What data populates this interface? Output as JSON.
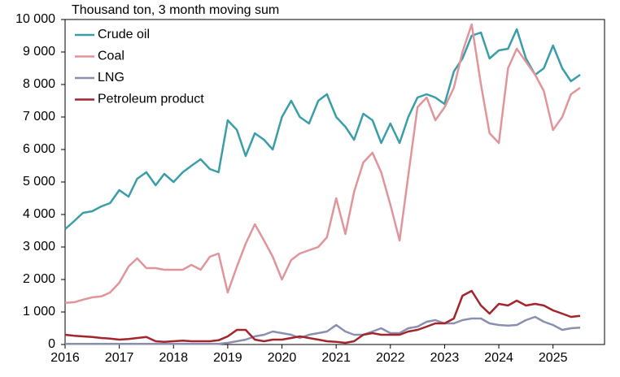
{
  "chart_data": {
    "type": "line",
    "title": "Thousand ton, 3 month moving sum",
    "x": [
      2016,
      2016.17,
      2016.33,
      2016.5,
      2016.67,
      2016.83,
      2017,
      2017.17,
      2017.33,
      2017.5,
      2017.67,
      2017.83,
      2018,
      2018.17,
      2018.33,
      2018.5,
      2018.67,
      2018.83,
      2019,
      2019.17,
      2019.33,
      2019.5,
      2019.67,
      2019.83,
      2020,
      2020.17,
      2020.33,
      2020.5,
      2020.67,
      2020.83,
      2021,
      2021.17,
      2021.33,
      2021.5,
      2021.67,
      2021.83,
      2022,
      2022.17,
      2022.33,
      2022.5,
      2022.67,
      2022.83,
      2023,
      2023.17,
      2023.33,
      2023.5,
      2023.67,
      2023.83,
      2024,
      2024.17,
      2024.33,
      2024.5,
      2024.67,
      2024.83,
      2025,
      2025.17,
      2025.33,
      2025.5
    ],
    "xlim": [
      2016,
      2025.95
    ],
    "xticks": [
      2016,
      2017,
      2018,
      2019,
      2020,
      2021,
      2022,
      2023,
      2024,
      2025
    ],
    "ylim": [
      0,
      10000
    ],
    "yticks": [
      0,
      {
        "value": 1000,
        "label": "1 000"
      },
      {
        "value": 2000,
        "label": "2 000"
      },
      {
        "value": 3000,
        "label": "3 000"
      },
      {
        "value": 4000,
        "label": "4 000"
      },
      {
        "value": 5000,
        "label": "5 000"
      },
      {
        "value": 6000,
        "label": "6 000"
      },
      {
        "value": 7000,
        "label": "7 000"
      },
      {
        "value": 8000,
        "label": "8 000"
      },
      {
        "value": 9000,
        "label": "9 000"
      },
      {
        "value": 10000,
        "label": "10 000"
      }
    ],
    "legend": "upper left",
    "series": [
      {
        "name": "Crude oil",
        "color": "#3a9ea8",
        "values": [
          3550,
          3800,
          4050,
          4100,
          4250,
          4350,
          4750,
          4550,
          5100,
          5300,
          4900,
          5250,
          5000,
          5300,
          5500,
          5700,
          5400,
          5300,
          6900,
          6600,
          5800,
          6500,
          6300,
          6000,
          7000,
          7500,
          7000,
          6800,
          7500,
          7700,
          7000,
          6700,
          6300,
          7100,
          6900,
          6200,
          6800,
          6200,
          7000,
          7600,
          7700,
          7600,
          7400,
          8400,
          8800,
          9500,
          9600,
          8800,
          9050,
          9100,
          9700,
          8800,
          8300,
          8500,
          9200,
          8500,
          8100,
          8300
        ]
      },
      {
        "name": "Coal",
        "color": "#e0959a",
        "values": [
          1280,
          1300,
          1380,
          1450,
          1480,
          1600,
          1900,
          2400,
          2650,
          2350,
          2350,
          2300,
          2300,
          2300,
          2450,
          2300,
          2700,
          2800,
          1600,
          2400,
          3100,
          3700,
          3200,
          2700,
          2000,
          2600,
          2800,
          2900,
          3000,
          3300,
          4500,
          3400,
          4700,
          5600,
          5900,
          5300,
          4300,
          3200,
          5200,
          7300,
          7600,
          6900,
          7300,
          7900,
          9000,
          9850,
          8000,
          6500,
          6200,
          8500,
          9100,
          8700,
          8300,
          7800,
          6600,
          7000,
          7700,
          7900
        ]
      },
      {
        "name": "LNG",
        "color": "#8a8fb0",
        "values": [
          20,
          20,
          20,
          20,
          20,
          20,
          20,
          20,
          20,
          20,
          20,
          20,
          20,
          20,
          20,
          20,
          20,
          20,
          50,
          100,
          150,
          250,
          300,
          400,
          350,
          300,
          200,
          300,
          350,
          400,
          600,
          400,
          300,
          300,
          400,
          500,
          350,
          350,
          500,
          550,
          700,
          750,
          650,
          650,
          750,
          800,
          800,
          650,
          600,
          580,
          600,
          750,
          850,
          700,
          600,
          450,
          500,
          520
        ]
      },
      {
        "name": "Petroleum product",
        "color": "#a3242a",
        "values": [
          300,
          270,
          250,
          230,
          200,
          180,
          150,
          170,
          200,
          230,
          100,
          80,
          100,
          120,
          100,
          100,
          100,
          130,
          250,
          450,
          450,
          150,
          100,
          150,
          150,
          200,
          250,
          200,
          150,
          100,
          80,
          50,
          100,
          300,
          350,
          300,
          300,
          300,
          400,
          450,
          550,
          650,
          650,
          800,
          1500,
          1650,
          1200,
          950,
          1250,
          1200,
          1350,
          1200,
          1250,
          1200,
          1050,
          950,
          850,
          880
        ]
      }
    ]
  }
}
